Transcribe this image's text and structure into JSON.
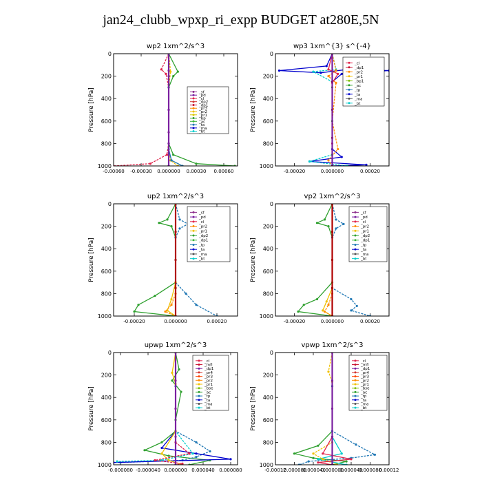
{
  "title": "jan24_clubb_wpxp_ri_expp  BUDGET at280E,5N",
  "chart_data": [
    {
      "type": "line",
      "title": "wp2   1xm^2/s^3",
      "ylabel": "Pressure [hPa]",
      "yticks": [
        0,
        200,
        400,
        600,
        800,
        1000
      ],
      "ylim": [
        1000,
        0
      ],
      "xlim": [
        -0.0006,
        0.00075
      ],
      "xtick_values": [
        -0.0006,
        -0.0003,
        0.0,
        0.0003,
        0.0006
      ],
      "xtick_labels": [
        "-0.00060",
        "-0.00030",
        "0.000000",
        "0.00030",
        "0.00060"
      ],
      "legend": [
        "_sf",
        "_pd",
        "_cl",
        "_dp2",
        "_dp1",
        "_pr3",
        "_pr2",
        "_pr1",
        "_bp",
        "_ac",
        "_ta",
        "_ma",
        "_bt"
      ],
      "legend_colors": [
        "#8b2a8b",
        "#7a1fa0",
        "#e0234a",
        "#d2322d",
        "#c8102e",
        "#ff8c00",
        "#f0c000",
        "#d8c800",
        "#2ea02e",
        "#3cb43c",
        "#1f77b4",
        "#0000cd",
        "#00cccc"
      ],
      "series": [
        {
          "color": "#8b2a8b",
          "x": [
            0,
            0,
            0,
            0,
            0,
            0,
            0
          ],
          "y": [
            0,
            150,
            300,
            500,
            700,
            900,
            1000
          ]
        },
        {
          "color": "#e0234a",
          "x": [
            0,
            -8e-05,
            -3e-05,
            0,
            0,
            -2e-05,
            -0.0002,
            -0.0006
          ],
          "y": [
            0,
            140,
            180,
            300,
            800,
            900,
            980,
            1000
          ]
        },
        {
          "color": "#2ea02e",
          "x": [
            0,
            0.0001,
            5e-05,
            0,
            0,
            5e-05,
            0.0003,
            0.00072
          ],
          "y": [
            0,
            160,
            200,
            300,
            800,
            900,
            980,
            1000
          ]
        },
        {
          "color": "#f0c000",
          "x": [
            0,
            2e-05,
            0,
            0,
            2e-05,
            0.0001
          ],
          "y": [
            0,
            160,
            300,
            850,
            950,
            1000
          ]
        },
        {
          "color": "#1f77b4",
          "x": [
            0,
            0,
            0,
            3e-05,
            0.00015
          ],
          "y": [
            0,
            300,
            850,
            950,
            1000
          ]
        },
        {
          "color": "#7a1fa0",
          "x": [
            0,
            0,
            0,
            0,
            0
          ],
          "y": [
            0,
            200,
            500,
            800,
            1000
          ]
        }
      ]
    },
    {
      "type": "line",
      "title": "wp3   1xm^{3} s^{-4}",
      "ylabel": "Pressure [hPa]",
      "yticks": [
        0,
        200,
        400,
        600,
        800,
        1000
      ],
      "ylim": [
        1000,
        0
      ],
      "xlim": [
        -0.0003,
        0.0003
      ],
      "xtick_values": [
        -0.0002,
        0.0,
        0.0002
      ],
      "xtick_labels": [
        "-0.00020",
        "0.000000",
        "0.00020"
      ],
      "legend": [
        "_cl",
        "_dp1",
        "_pr2",
        "_pr1",
        "_bp1",
        "_ac",
        "_tp",
        "_ta",
        "_ma",
        "_bt"
      ],
      "legend_colors": [
        "#e0234a",
        "#c8102e",
        "#ff8c00",
        "#f0c000",
        "#7fbf00",
        "#2ea02e",
        "#1f77b4",
        "#0000cd",
        "#555555",
        "#00cccc"
      ],
      "series": [
        {
          "color": "#0000cd",
          "x": [
            0,
            -3e-05,
            -0.00028,
            -6e-05,
            8e-05,
            0.0003,
            5e-05,
            0,
            0,
            5e-05,
            -0.00012,
            0.00018,
            0
          ],
          "y": [
            0,
            110,
            150,
            170,
            140,
            150,
            180,
            250,
            850,
            920,
            960,
            990,
            1000
          ]
        },
        {
          "color": "#00cccc",
          "x": [
            0,
            2e-05,
            -0.0001,
            0,
            0,
            -0.00012,
            8e-05
          ],
          "y": [
            0,
            140,
            160,
            250,
            900,
            960,
            1000
          ]
        },
        {
          "color": "#e0234a",
          "x": [
            0,
            -2e-05,
            3e-05,
            0,
            0,
            0
          ],
          "y": [
            0,
            140,
            180,
            260,
            800,
            1000
          ]
        },
        {
          "color": "#ff8c00",
          "x": [
            0,
            2e-05,
            -2e-05,
            2e-05,
            0,
            3e-05,
            -2e-05,
            0
          ],
          "y": [
            0,
            150,
            200,
            260,
            600,
            850,
            950,
            1000
          ]
        },
        {
          "color": "#2ea02e",
          "x": [
            0,
            0,
            0,
            0,
            0
          ],
          "y": [
            0,
            300,
            600,
            900,
            1000
          ]
        },
        {
          "color": "#8b0000",
          "x": [
            0,
            0,
            0,
            0,
            0
          ],
          "y": [
            0,
            250,
            500,
            750,
            1000
          ]
        }
      ]
    },
    {
      "type": "line",
      "title": "up2   1xm^2/s^3",
      "ylabel": "Pressure [hPa]",
      "yticks": [
        0,
        200,
        400,
        600,
        800,
        1000
      ],
      "ylim": [
        1000,
        0
      ],
      "xlim": [
        -0.0003,
        0.0003
      ],
      "xtick_values": [
        -0.0002,
        0.0,
        0.0002
      ],
      "xtick_labels": [
        "-0.00020",
        "0.000000",
        "0.00020"
      ],
      "legend": [
        "_sf",
        "_pd",
        "_cl",
        "_pr2",
        "_pr1",
        "_dp2",
        "_dp1",
        "_tp",
        "_ta",
        "_ma",
        "_bt"
      ],
      "legend_colors": [
        "#8b2a8b",
        "#7a1fa0",
        "#e0234a",
        "#ff8c00",
        "#f0c000",
        "#2ea02e",
        "#3cb43c",
        "#1f77b4",
        "#0000cd",
        "#555555",
        "#00cccc"
      ],
      "series": [
        {
          "color": "#2ea02e",
          "x": [
            0,
            -4e-05,
            -8e-05,
            -2e-05,
            0,
            0,
            -0.0001,
            -0.00018,
            -0.0002,
            0
          ],
          "y": [
            0,
            140,
            170,
            200,
            300,
            700,
            820,
            900,
            960,
            1000
          ]
        },
        {
          "color": "#1f77b4",
          "x": [
            0,
            2e-05,
            6e-05,
            2e-05,
            0,
            0,
            5e-05,
            0.0001,
            0.0002
          ],
          "y": [
            0,
            140,
            180,
            220,
            300,
            700,
            800,
            900,
            1000
          ]
        },
        {
          "color": "#f0c000",
          "x": [
            0,
            0,
            -2e-05,
            -4e-05,
            0
          ],
          "y": [
            0,
            700,
            850,
            950,
            1000
          ]
        },
        {
          "color": "#ff8c00",
          "x": [
            0,
            0,
            -2e-05,
            -5e-05,
            0
          ],
          "y": [
            0,
            800,
            900,
            960,
            1000
          ]
        },
        {
          "color": "#8b0000",
          "x": [
            0,
            0,
            0,
            0,
            0
          ],
          "y": [
            0,
            250,
            500,
            750,
            1000
          ]
        }
      ]
    },
    {
      "type": "line",
      "title": "vp2   1xm^2/s^3",
      "ylabel": "Pressure [hPa]",
      "yticks": [
        0,
        200,
        400,
        600,
        800,
        1000
      ],
      "ylim": [
        1000,
        0
      ],
      "xlim": [
        -0.0003,
        0.0003
      ],
      "xtick_values": [
        -0.0002,
        0.0,
        0.0002
      ],
      "xtick_labels": [
        "-0.00020",
        "0.000000",
        "0.00020"
      ],
      "legend": [
        "_sf",
        "_pd",
        "_cl",
        "_pr2",
        "_pr1",
        "_dp2",
        "_dp1",
        "_tp",
        "_ta",
        "_ma",
        "_bt"
      ],
      "legend_colors": [
        "#8b2a8b",
        "#7a1fa0",
        "#e0234a",
        "#ff8c00",
        "#f0c000",
        "#2ea02e",
        "#3cb43c",
        "#1f77b4",
        "#0000cd",
        "#555555",
        "#00cccc"
      ],
      "series": [
        {
          "color": "#2ea02e",
          "x": [
            0,
            -4e-05,
            -8e-05,
            -2e-05,
            0,
            0,
            -8e-05,
            -0.00015,
            -0.00018,
            0
          ],
          "y": [
            0,
            140,
            170,
            200,
            300,
            700,
            850,
            900,
            960,
            1000
          ]
        },
        {
          "color": "#1f77b4",
          "x": [
            0,
            2e-05,
            6e-05,
            2e-05,
            0,
            0,
            0.0001,
            0.00013,
            0.0001,
            0.0002
          ],
          "y": [
            0,
            140,
            180,
            220,
            300,
            750,
            850,
            910,
            950,
            1000
          ]
        },
        {
          "color": "#f0c000",
          "x": [
            0,
            0,
            -3e-05,
            -5e-05,
            0
          ],
          "y": [
            0,
            750,
            870,
            950,
            1000
          ]
        },
        {
          "color": "#ff8c00",
          "x": [
            0,
            0,
            -2e-05,
            -4e-05,
            0
          ],
          "y": [
            0,
            800,
            900,
            960,
            1000
          ]
        },
        {
          "color": "#8b0000",
          "x": [
            0,
            0,
            0,
            0,
            0
          ],
          "y": [
            0,
            250,
            500,
            750,
            1000
          ]
        }
      ]
    },
    {
      "type": "line",
      "title": "upwp   1xm^2/s^3",
      "ylabel": "Pressure [hPa]",
      "yticks": [
        0,
        200,
        400,
        600,
        800,
        1000
      ],
      "ylim": [
        1000,
        0
      ],
      "xlim": [
        -9e-05,
        9e-05
      ],
      "xtick_values": [
        -8e-05,
        -4e-05,
        0.0,
        4e-05,
        8e-05
      ],
      "xtick_labels": [
        "-0.000080",
        "-0.000040",
        "0.000000",
        "0.000040",
        "0.000080"
      ],
      "legend": [
        "_cl",
        "_mfl",
        "_dp1",
        "_pr4",
        "_pr3",
        "_pr2",
        "_pr1",
        "_bse",
        "_ac",
        "_tp",
        "_ta",
        "_ma",
        "_bt"
      ],
      "legend_colors": [
        "#e0234a",
        "#c8102e",
        "#7a1fa0",
        "#d2322d",
        "#ff4500",
        "#ff8c00",
        "#f0c000",
        "#7fbf00",
        "#2ea02e",
        "#1f77b4",
        "#0000cd",
        "#555555",
        "#00cccc"
      ],
      "series": [
        {
          "color": "#2ea02e",
          "x": [
            0,
            5e-06,
            -5e-06,
            8e-06,
            0,
            0,
            -2e-05,
            -4.5e-05,
            -1e-05,
            5e-05,
            2e-05
          ],
          "y": [
            0,
            150,
            250,
            350,
            600,
            700,
            800,
            870,
            920,
            960,
            1000
          ]
        },
        {
          "color": "#1f77b4",
          "x": [
            0,
            0,
            0,
            3e-05,
            5e-05,
            3e-05,
            1e-05,
            -8e-05
          ],
          "y": [
            0,
            300,
            700,
            800,
            880,
            930,
            960,
            980
          ]
        },
        {
          "color": "#0000cd",
          "x": [
            0,
            0,
            -2e-05,
            3e-05,
            8e-05,
            -9e-05
          ],
          "y": [
            0,
            700,
            850,
            900,
            950,
            980
          ]
        },
        {
          "color": "#00cccc",
          "x": [
            0,
            0,
            2.5e-05,
            -2e-05,
            -8.5e-05
          ],
          "y": [
            0,
            700,
            900,
            960,
            970
          ]
        },
        {
          "color": "#f0c000",
          "x": [
            0,
            -5e-06,
            0,
            0,
            -2e-05,
            -1e-05,
            1e-05
          ],
          "y": [
            0,
            180,
            280,
            700,
            900,
            960,
            1000
          ]
        },
        {
          "color": "#e0234a",
          "x": [
            0,
            0,
            0,
            2e-05,
            -3e-05,
            1e-05,
            0
          ],
          "y": [
            0,
            500,
            800,
            900,
            960,
            990,
            1000
          ]
        },
        {
          "color": "#8b2a8b",
          "x": [
            0,
            0,
            0,
            0,
            0
          ],
          "y": [
            0,
            250,
            500,
            750,
            1000
          ]
        }
      ]
    },
    {
      "type": "line",
      "title": "vpwp   1xm^2/s^3",
      "ylabel": "Pressure [hPa]",
      "yticks": [
        0,
        200,
        400,
        600,
        800,
        1000
      ],
      "ylim": [
        1000,
        0
      ],
      "xlim": [
        -0.00012,
        0.00012
      ],
      "xtick_values": [
        -0.00012,
        -8e-05,
        -4e-05,
        0.0,
        4e-05,
        8e-05,
        0.00012
      ],
      "xtick_labels": [
        "-0.00012",
        "-0.000080",
        "-0.000040",
        "0.000000",
        "0.000040",
        "0.000080",
        "0.00012"
      ],
      "legend": [
        "_cl",
        "_mfl",
        "_dp1",
        "_pr4",
        "_pr3",
        "_pr2",
        "_pr1",
        "_bse",
        "_ac",
        "_tp",
        "_ta",
        "_ma",
        "_bt"
      ],
      "legend_colors": [
        "#e0234a",
        "#c8102e",
        "#7a1fa0",
        "#d2322d",
        "#ff4500",
        "#ff8c00",
        "#f0c000",
        "#7fbf00",
        "#2ea02e",
        "#1f77b4",
        "#0000cd",
        "#555555",
        "#00cccc"
      ],
      "series": [
        {
          "color": "#2ea02e",
          "x": [
            0,
            0,
            0,
            -3e-05,
            -8e-05,
            -4e-05,
            3e-05,
            0
          ],
          "y": [
            0,
            300,
            700,
            830,
            900,
            940,
            970,
            1000
          ]
        },
        {
          "color": "#1f77b4",
          "x": [
            0,
            0,
            0,
            5e-05,
            9e-05,
            4e-05,
            -5e-05,
            -7e-05
          ],
          "y": [
            0,
            300,
            700,
            820,
            910,
            940,
            970,
            1000
          ]
        },
        {
          "color": "#00cccc",
          "x": [
            0,
            0,
            2e-05,
            -3e-05,
            3e-05
          ],
          "y": [
            0,
            750,
            900,
            950,
            1000
          ]
        },
        {
          "color": "#f0c000",
          "x": [
            0,
            -8e-06,
            0,
            0,
            -4e-05,
            -2e-05,
            1e-05
          ],
          "y": [
            0,
            170,
            260,
            800,
            900,
            950,
            1000
          ]
        },
        {
          "color": "#e0234a",
          "x": [
            0,
            0,
            -2e-05,
            4e-05,
            -3e-05,
            0
          ],
          "y": [
            0,
            750,
            900,
            950,
            980,
            1000
          ]
        },
        {
          "color": "#8b2a8b",
          "x": [
            0,
            0,
            0,
            0,
            0
          ],
          "y": [
            0,
            250,
            500,
            750,
            1000
          ]
        }
      ]
    }
  ]
}
